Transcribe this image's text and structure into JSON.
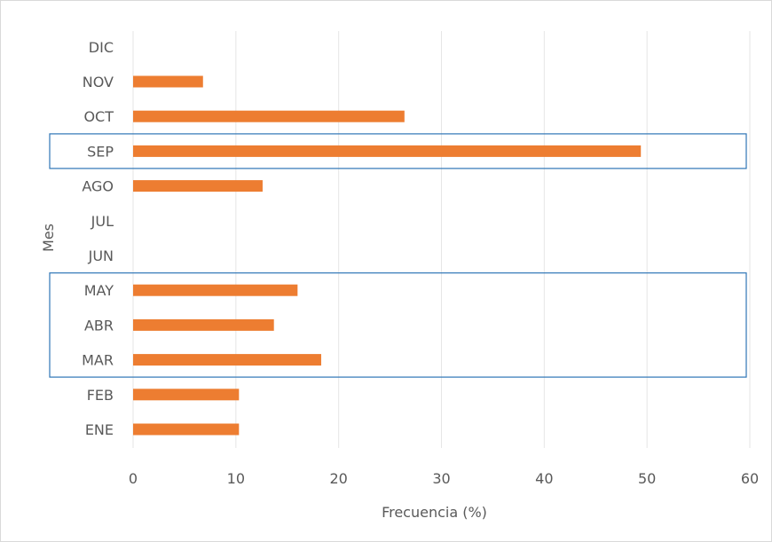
{
  "chart_data": {
    "type": "bar",
    "orientation": "horizontal",
    "categories": [
      "ENE",
      "FEB",
      "MAR",
      "ABR",
      "MAY",
      "JUN",
      "JUL",
      "AGO",
      "SEP",
      "OCT",
      "NOV",
      "DIC"
    ],
    "values": [
      10.3,
      10.3,
      18.3,
      13.7,
      16.0,
      0,
      0,
      12.6,
      49.4,
      26.4,
      6.8,
      0
    ],
    "xlabel": "Frecuencia (%)",
    "ylabel": "Mes",
    "xlim": [
      0,
      60
    ],
    "xticks": [
      "0",
      "10",
      "20",
      "30",
      "40",
      "50",
      "60"
    ],
    "grid": "vertical",
    "bar_color": "#ed7d31",
    "highlight_color": "#2e75b6",
    "highlights": [
      {
        "categories": [
          "SEP"
        ]
      },
      {
        "categories": [
          "MAR",
          "ABR",
          "MAY"
        ]
      }
    ]
  }
}
